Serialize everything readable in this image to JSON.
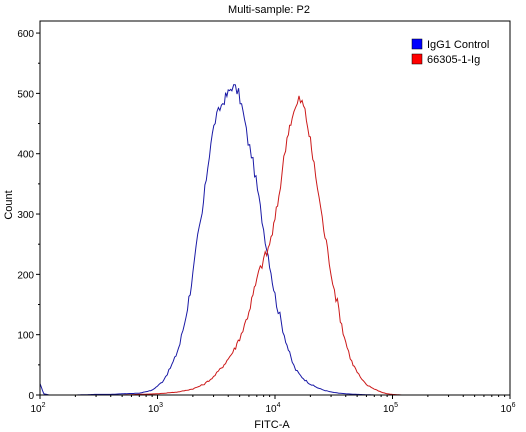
{
  "chart_data": {
    "type": "line",
    "title": "Multi-sample: P2",
    "xlabel": "FITC-A",
    "ylabel": "Count",
    "x_scale": "log",
    "xlim": [
      100,
      1000000
    ],
    "ylim": [
      0,
      620
    ],
    "x_ticks": [
      {
        "value": 100,
        "base": "10",
        "exp": "2"
      },
      {
        "value": 1000,
        "base": "10",
        "exp": "3"
      },
      {
        "value": 10000,
        "base": "10",
        "exp": "4"
      },
      {
        "value": 100000,
        "base": "10",
        "exp": "5"
      },
      {
        "value": 1000000,
        "base": "10",
        "exp": "6"
      }
    ],
    "y_ticks": [
      0,
      100,
      200,
      300,
      400,
      500,
      600
    ],
    "grid": false,
    "legend_position": "top-right",
    "series": [
      {
        "name": "IgG1 Control",
        "color": "#1a1aa6",
        "legend_color": "#0000ff",
        "points": [
          [
            100,
            18
          ],
          [
            108,
            2
          ],
          [
            120,
            0
          ],
          [
            200,
            0
          ],
          [
            300,
            1
          ],
          [
            400,
            1
          ],
          [
            500,
            2
          ],
          [
            700,
            3
          ],
          [
            900,
            8
          ],
          [
            1000,
            15
          ],
          [
            1100,
            22
          ],
          [
            1250,
            40
          ],
          [
            1400,
            60
          ],
          [
            1550,
            85
          ],
          [
            1700,
            120
          ],
          [
            1850,
            160
          ],
          [
            2000,
            200
          ],
          [
            2200,
            260
          ],
          [
            2400,
            300
          ],
          [
            2600,
            360
          ],
          [
            2850,
            420
          ],
          [
            3100,
            455
          ],
          [
            3400,
            475
          ],
          [
            3700,
            490
          ],
          [
            4000,
            500
          ],
          [
            4300,
            512
          ],
          [
            4600,
            508
          ],
          [
            4900,
            500
          ],
          [
            5200,
            480
          ],
          [
            5500,
            455
          ],
          [
            5900,
            420
          ],
          [
            6300,
            400
          ],
          [
            6700,
            370
          ],
          [
            7100,
            340
          ],
          [
            7500,
            310
          ],
          [
            8000,
            275
          ],
          [
            8500,
            245
          ],
          [
            9000,
            220
          ],
          [
            9500,
            190
          ],
          [
            10000,
            165
          ],
          [
            11000,
            130
          ],
          [
            12000,
            100
          ],
          [
            13000,
            75
          ],
          [
            14000,
            55
          ],
          [
            15000,
            42
          ],
          [
            16500,
            32
          ],
          [
            18000,
            25
          ],
          [
            20000,
            18
          ],
          [
            23000,
            12
          ],
          [
            26000,
            8
          ],
          [
            30000,
            5
          ],
          [
            35000,
            3
          ],
          [
            40000,
            2
          ],
          [
            50000,
            1
          ],
          [
            70000,
            0
          ],
          [
            1000000,
            0
          ]
        ]
      },
      {
        "name": "66305-1-Ig",
        "color": "#cc1a1a",
        "legend_color": "#ff0000",
        "points": [
          [
            100,
            0
          ],
          [
            500,
            0
          ],
          [
            1000,
            2
          ],
          [
            1500,
            5
          ],
          [
            2000,
            10
          ],
          [
            2500,
            18
          ],
          [
            3000,
            30
          ],
          [
            3500,
            45
          ],
          [
            4000,
            60
          ],
          [
            4500,
            75
          ],
          [
            5000,
            95
          ],
          [
            5500,
            115
          ],
          [
            6000,
            140
          ],
          [
            6500,
            165
          ],
          [
            7000,
            190
          ],
          [
            7500,
            210
          ],
          [
            8000,
            225
          ],
          [
            8500,
            235
          ],
          [
            9000,
            250
          ],
          [
            9500,
            270
          ],
          [
            10000,
            290
          ],
          [
            10800,
            330
          ],
          [
            11500,
            370
          ],
          [
            12300,
            410
          ],
          [
            13000,
            440
          ],
          [
            14000,
            460
          ],
          [
            15000,
            475
          ],
          [
            16000,
            490
          ],
          [
            17000,
            485
          ],
          [
            18000,
            470
          ],
          [
            19000,
            445
          ],
          [
            20000,
            420
          ],
          [
            21500,
            380
          ],
          [
            23000,
            345
          ],
          [
            24500,
            310
          ],
          [
            26000,
            275
          ],
          [
            28000,
            240
          ],
          [
            30000,
            205
          ],
          [
            32000,
            175
          ],
          [
            35000,
            140
          ],
          [
            38000,
            105
          ],
          [
            41000,
            80
          ],
          [
            45000,
            55
          ],
          [
            50000,
            38
          ],
          [
            55000,
            25
          ],
          [
            60000,
            17
          ],
          [
            70000,
            10
          ],
          [
            80000,
            5
          ],
          [
            90000,
            2
          ],
          [
            100000,
            1
          ],
          [
            120000,
            0
          ],
          [
            1000000,
            0
          ]
        ]
      }
    ]
  }
}
